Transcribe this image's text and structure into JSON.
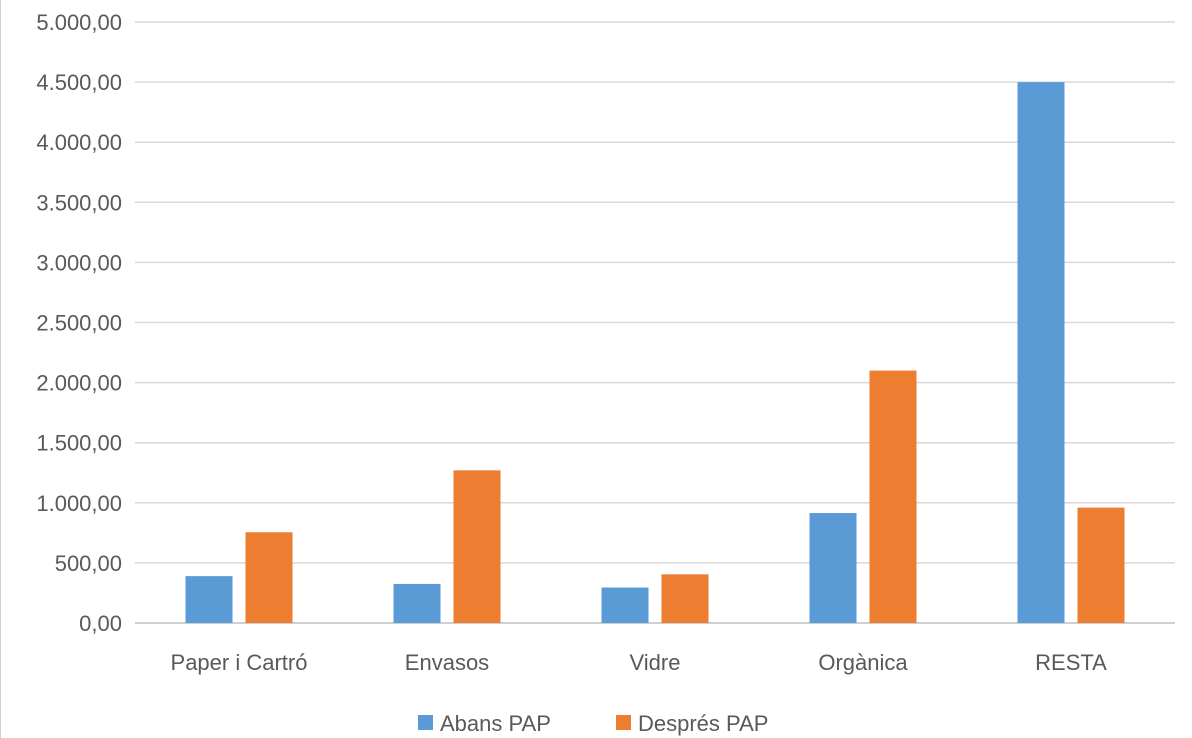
{
  "chart_data": {
    "type": "bar",
    "categories": [
      "Paper i Cartró",
      "Envasos",
      "Vidre",
      "Orgànica",
      "RESTA"
    ],
    "series": [
      {
        "name": "Abans PAP",
        "color": "#5b9bd5",
        "values": [
          390,
          325,
          295,
          915,
          4500
        ]
      },
      {
        "name": "Després PAP",
        "color": "#ed7d31",
        "values": [
          755,
          1270,
          405,
          2100,
          960
        ]
      }
    ],
    "y_ticks": [
      "0,00",
      "500,00",
      "1.000,00",
      "1.500,00",
      "2.000,00",
      "2.500,00",
      "3.000,00",
      "3.500,00",
      "4.000,00",
      "4.500,00",
      "5.000,00"
    ],
    "ylim": [
      0,
      5000
    ],
    "title": "",
    "xlabel": "",
    "ylabel": "",
    "grid": true,
    "legend_position": "bottom"
  }
}
